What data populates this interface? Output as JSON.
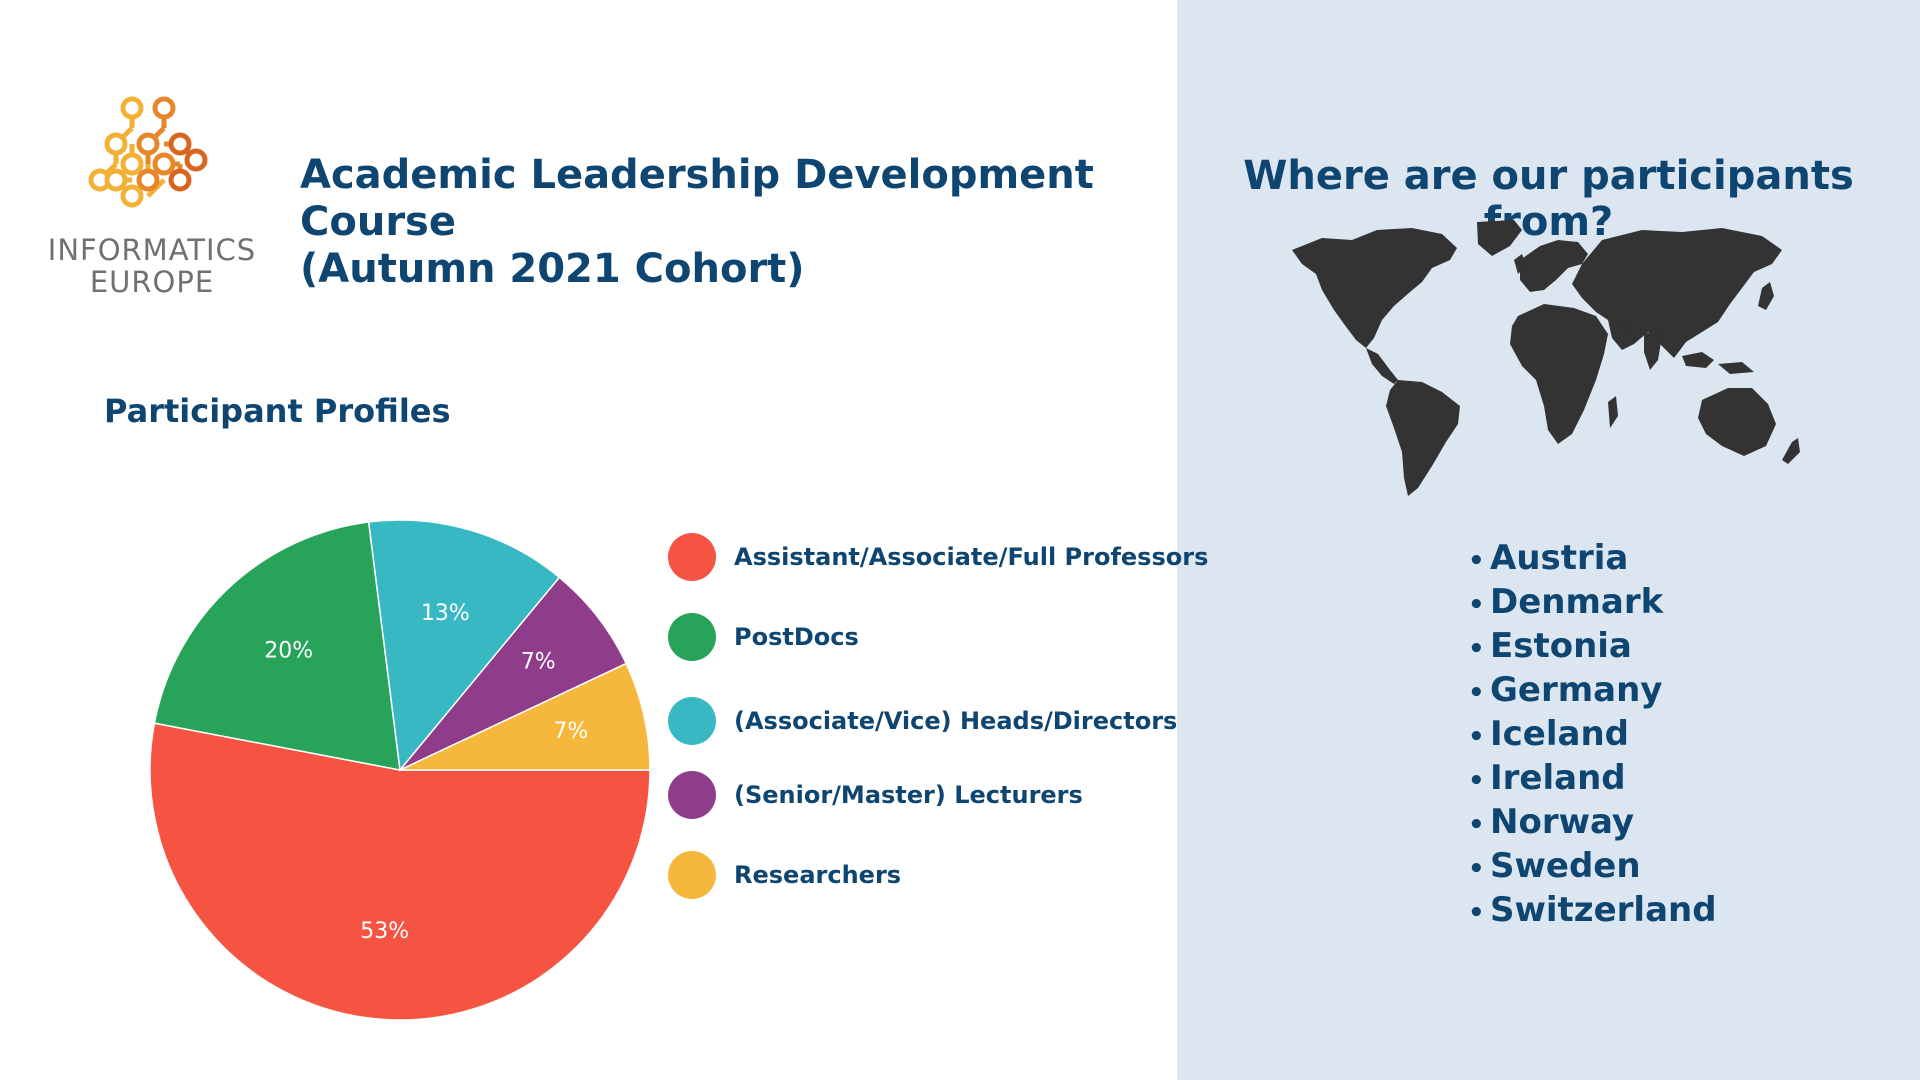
{
  "logo": {
    "line1": "INFORMATICS",
    "line2": "EUROPE",
    "colors": [
      "#f2b134",
      "#e8862a",
      "#d9661f"
    ]
  },
  "header": {
    "title_line1": "Academic Leadership Development Course",
    "title_line2": "(Autumn 2021 Cohort)"
  },
  "profiles": {
    "title": "Participant Profiles"
  },
  "chart_data": {
    "type": "pie",
    "title": "Participant Profiles",
    "slices": [
      {
        "label": "Assistant/Associate/Full Professors",
        "value": 53,
        "color": "#f55442",
        "text": "53%"
      },
      {
        "label": "PostDocs",
        "value": 20,
        "color": "#27a35a",
        "text": "20%"
      },
      {
        "label": "(Associate/Vice) Heads/Directors",
        "value": 13,
        "color": "#37b8c2",
        "text": "13%"
      },
      {
        "label": "(Senior/Master) Lecturers",
        "value": 7,
        "color": "#8f3d8b",
        "text": "7%"
      },
      {
        "label": "Researchers",
        "value": 7,
        "color": "#f6b83c",
        "text": "7%"
      }
    ],
    "legend_order": [
      0,
      1,
      2,
      3,
      4
    ],
    "legend_position": "right"
  },
  "countries": {
    "title": "Where are our participants from?",
    "map_icon": "world-map-icon",
    "bullet": "•",
    "items": [
      "Austria",
      "Denmark",
      "Estonia",
      "Germany",
      "Iceland",
      "Ireland",
      "Norway",
      "Sweden",
      "Switzerland"
    ]
  }
}
